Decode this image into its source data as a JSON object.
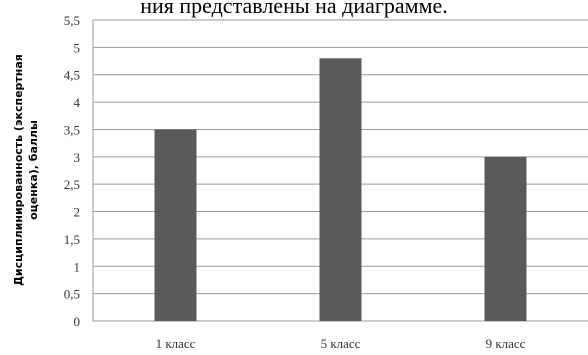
{
  "caption": "ния представлены на диаграмме.",
  "chart_data": {
    "type": "bar",
    "categories": [
      "1 класс",
      "5 класс",
      "9 класс"
    ],
    "values": [
      3.5,
      4.8,
      3.0
    ],
    "title": "",
    "xlabel": "",
    "ylabel_line1": "Дисциплинированность (экспертная",
    "ylabel_line2": "оценка), баллы",
    "ylim": [
      0,
      5.5
    ],
    "yticks": [
      "0",
      "0,5",
      "1",
      "1,5",
      "2",
      "2,5",
      "3",
      "3,5",
      "4",
      "4,5",
      "5",
      "5,5"
    ],
    "grid": true,
    "bar_color": "#5a5a5a"
  }
}
